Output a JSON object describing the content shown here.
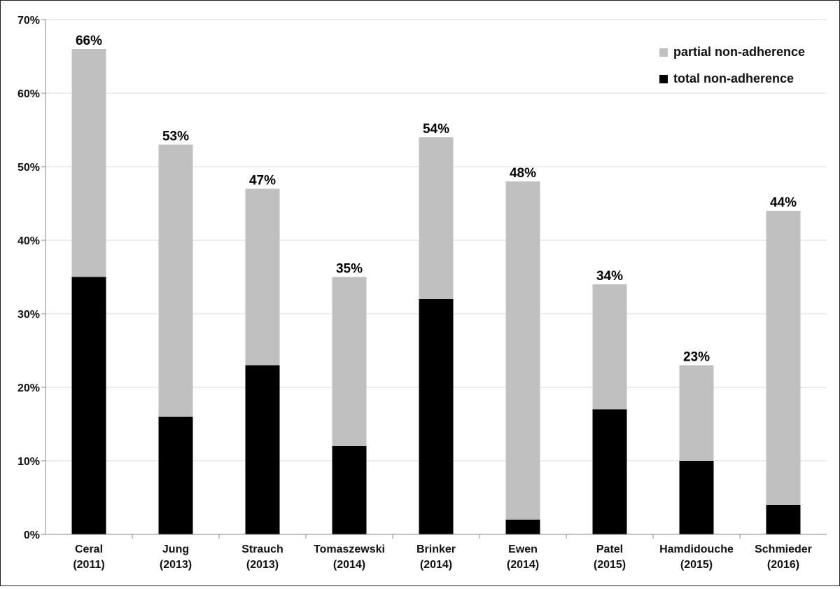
{
  "chart_data": {
    "type": "bar",
    "stacked": true,
    "categories": [
      [
        "Ceral",
        "(2011)"
      ],
      [
        "Jung",
        "(2013)"
      ],
      [
        "Strauch",
        "(2013)"
      ],
      [
        "Tomaszewski",
        "(2014)"
      ],
      [
        "Brinker",
        "(2014)"
      ],
      [
        "Ewen",
        "(2014)"
      ],
      [
        "Patel",
        "(2015)"
      ],
      [
        "Hamdidouche",
        "(2015)"
      ],
      [
        "Schmieder",
        "(2016)"
      ]
    ],
    "series": [
      {
        "name": "total non-adherence",
        "color": "#000000",
        "values": [
          35,
          16,
          23,
          12,
          32,
          2,
          17,
          10,
          4
        ]
      },
      {
        "name": "partial non-adherence",
        "color": "#c0c0c0",
        "values": [
          31,
          37,
          24,
          23,
          22,
          46,
          17,
          13,
          40
        ]
      }
    ],
    "totals": [
      "66%",
      "53%",
      "47%",
      "35%",
      "54%",
      "48%",
      "34%",
      "23%",
      "44%"
    ],
    "y_ticks": [
      "0%",
      "10%",
      "20%",
      "30%",
      "40%",
      "50%",
      "60%",
      "70%"
    ],
    "ylim": [
      0,
      70
    ],
    "grid": true,
    "legend": {
      "position": "top-right",
      "order": [
        "partial non-adherence",
        "total non-adherence"
      ]
    },
    "title": "",
    "xlabel": "",
    "ylabel": ""
  }
}
